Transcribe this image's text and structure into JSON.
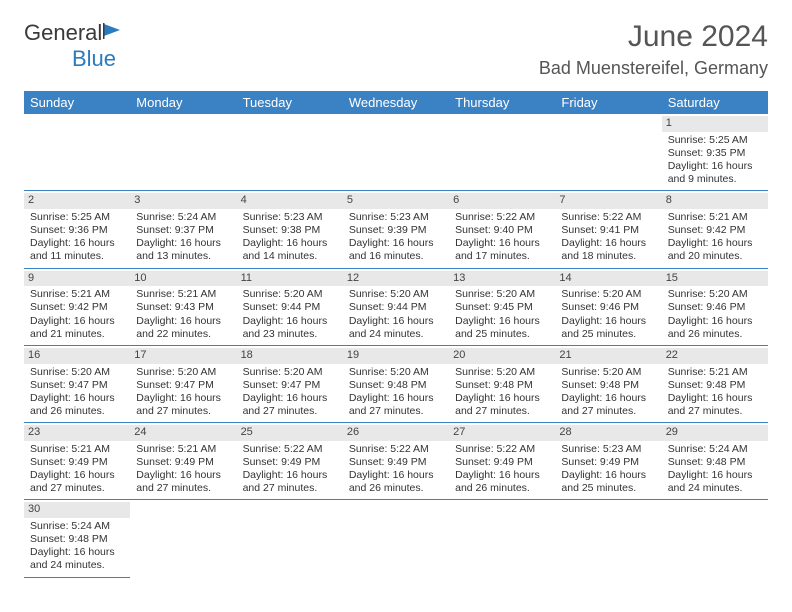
{
  "logo": {
    "text1": "General",
    "text2": "Blue"
  },
  "title": "June 2024",
  "location": "Bad Muenstereifel, Germany",
  "weekdays": [
    "Sunday",
    "Monday",
    "Tuesday",
    "Wednesday",
    "Thursday",
    "Friday",
    "Saturday"
  ],
  "colors": {
    "header_bg": "#3b82c4",
    "header_text": "#ffffff",
    "daynum_bg": "#e8e8e8",
    "border": "#3b82c4",
    "text": "#333333",
    "title": "#555555"
  },
  "days": {
    "1": {
      "sunrise": "5:25 AM",
      "sunset": "9:35 PM",
      "daylight": "16 hours and 9 minutes."
    },
    "2": {
      "sunrise": "5:25 AM",
      "sunset": "9:36 PM",
      "daylight": "16 hours and 11 minutes."
    },
    "3": {
      "sunrise": "5:24 AM",
      "sunset": "9:37 PM",
      "daylight": "16 hours and 13 minutes."
    },
    "4": {
      "sunrise": "5:23 AM",
      "sunset": "9:38 PM",
      "daylight": "16 hours and 14 minutes."
    },
    "5": {
      "sunrise": "5:23 AM",
      "sunset": "9:39 PM",
      "daylight": "16 hours and 16 minutes."
    },
    "6": {
      "sunrise": "5:22 AM",
      "sunset": "9:40 PM",
      "daylight": "16 hours and 17 minutes."
    },
    "7": {
      "sunrise": "5:22 AM",
      "sunset": "9:41 PM",
      "daylight": "16 hours and 18 minutes."
    },
    "8": {
      "sunrise": "5:21 AM",
      "sunset": "9:42 PM",
      "daylight": "16 hours and 20 minutes."
    },
    "9": {
      "sunrise": "5:21 AM",
      "sunset": "9:42 PM",
      "daylight": "16 hours and 21 minutes."
    },
    "10": {
      "sunrise": "5:21 AM",
      "sunset": "9:43 PM",
      "daylight": "16 hours and 22 minutes."
    },
    "11": {
      "sunrise": "5:20 AM",
      "sunset": "9:44 PM",
      "daylight": "16 hours and 23 minutes."
    },
    "12": {
      "sunrise": "5:20 AM",
      "sunset": "9:44 PM",
      "daylight": "16 hours and 24 minutes."
    },
    "13": {
      "sunrise": "5:20 AM",
      "sunset": "9:45 PM",
      "daylight": "16 hours and 25 minutes."
    },
    "14": {
      "sunrise": "5:20 AM",
      "sunset": "9:46 PM",
      "daylight": "16 hours and 25 minutes."
    },
    "15": {
      "sunrise": "5:20 AM",
      "sunset": "9:46 PM",
      "daylight": "16 hours and 26 minutes."
    },
    "16": {
      "sunrise": "5:20 AM",
      "sunset": "9:47 PM",
      "daylight": "16 hours and 26 minutes."
    },
    "17": {
      "sunrise": "5:20 AM",
      "sunset": "9:47 PM",
      "daylight": "16 hours and 27 minutes."
    },
    "18": {
      "sunrise": "5:20 AM",
      "sunset": "9:47 PM",
      "daylight": "16 hours and 27 minutes."
    },
    "19": {
      "sunrise": "5:20 AM",
      "sunset": "9:48 PM",
      "daylight": "16 hours and 27 minutes."
    },
    "20": {
      "sunrise": "5:20 AM",
      "sunset": "9:48 PM",
      "daylight": "16 hours and 27 minutes."
    },
    "21": {
      "sunrise": "5:20 AM",
      "sunset": "9:48 PM",
      "daylight": "16 hours and 27 minutes."
    },
    "22": {
      "sunrise": "5:21 AM",
      "sunset": "9:48 PM",
      "daylight": "16 hours and 27 minutes."
    },
    "23": {
      "sunrise": "5:21 AM",
      "sunset": "9:49 PM",
      "daylight": "16 hours and 27 minutes."
    },
    "24": {
      "sunrise": "5:21 AM",
      "sunset": "9:49 PM",
      "daylight": "16 hours and 27 minutes."
    },
    "25": {
      "sunrise": "5:22 AM",
      "sunset": "9:49 PM",
      "daylight": "16 hours and 27 minutes."
    },
    "26": {
      "sunrise": "5:22 AM",
      "sunset": "9:49 PM",
      "daylight": "16 hours and 26 minutes."
    },
    "27": {
      "sunrise": "5:22 AM",
      "sunset": "9:49 PM",
      "daylight": "16 hours and 26 minutes."
    },
    "28": {
      "sunrise": "5:23 AM",
      "sunset": "9:49 PM",
      "daylight": "16 hours and 25 minutes."
    },
    "29": {
      "sunrise": "5:24 AM",
      "sunset": "9:48 PM",
      "daylight": "16 hours and 24 minutes."
    },
    "30": {
      "sunrise": "5:24 AM",
      "sunset": "9:48 PM",
      "daylight": "16 hours and 24 minutes."
    }
  },
  "grid": [
    [
      null,
      null,
      null,
      null,
      null,
      null,
      1
    ],
    [
      2,
      3,
      4,
      5,
      6,
      7,
      8
    ],
    [
      9,
      10,
      11,
      12,
      13,
      14,
      15
    ],
    [
      16,
      17,
      18,
      19,
      20,
      21,
      22
    ],
    [
      23,
      24,
      25,
      26,
      27,
      28,
      29
    ],
    [
      30,
      null,
      null,
      null,
      null,
      null,
      null
    ]
  ],
  "labels": {
    "sunrise": "Sunrise:",
    "sunset": "Sunset:",
    "daylight": "Daylight:"
  }
}
